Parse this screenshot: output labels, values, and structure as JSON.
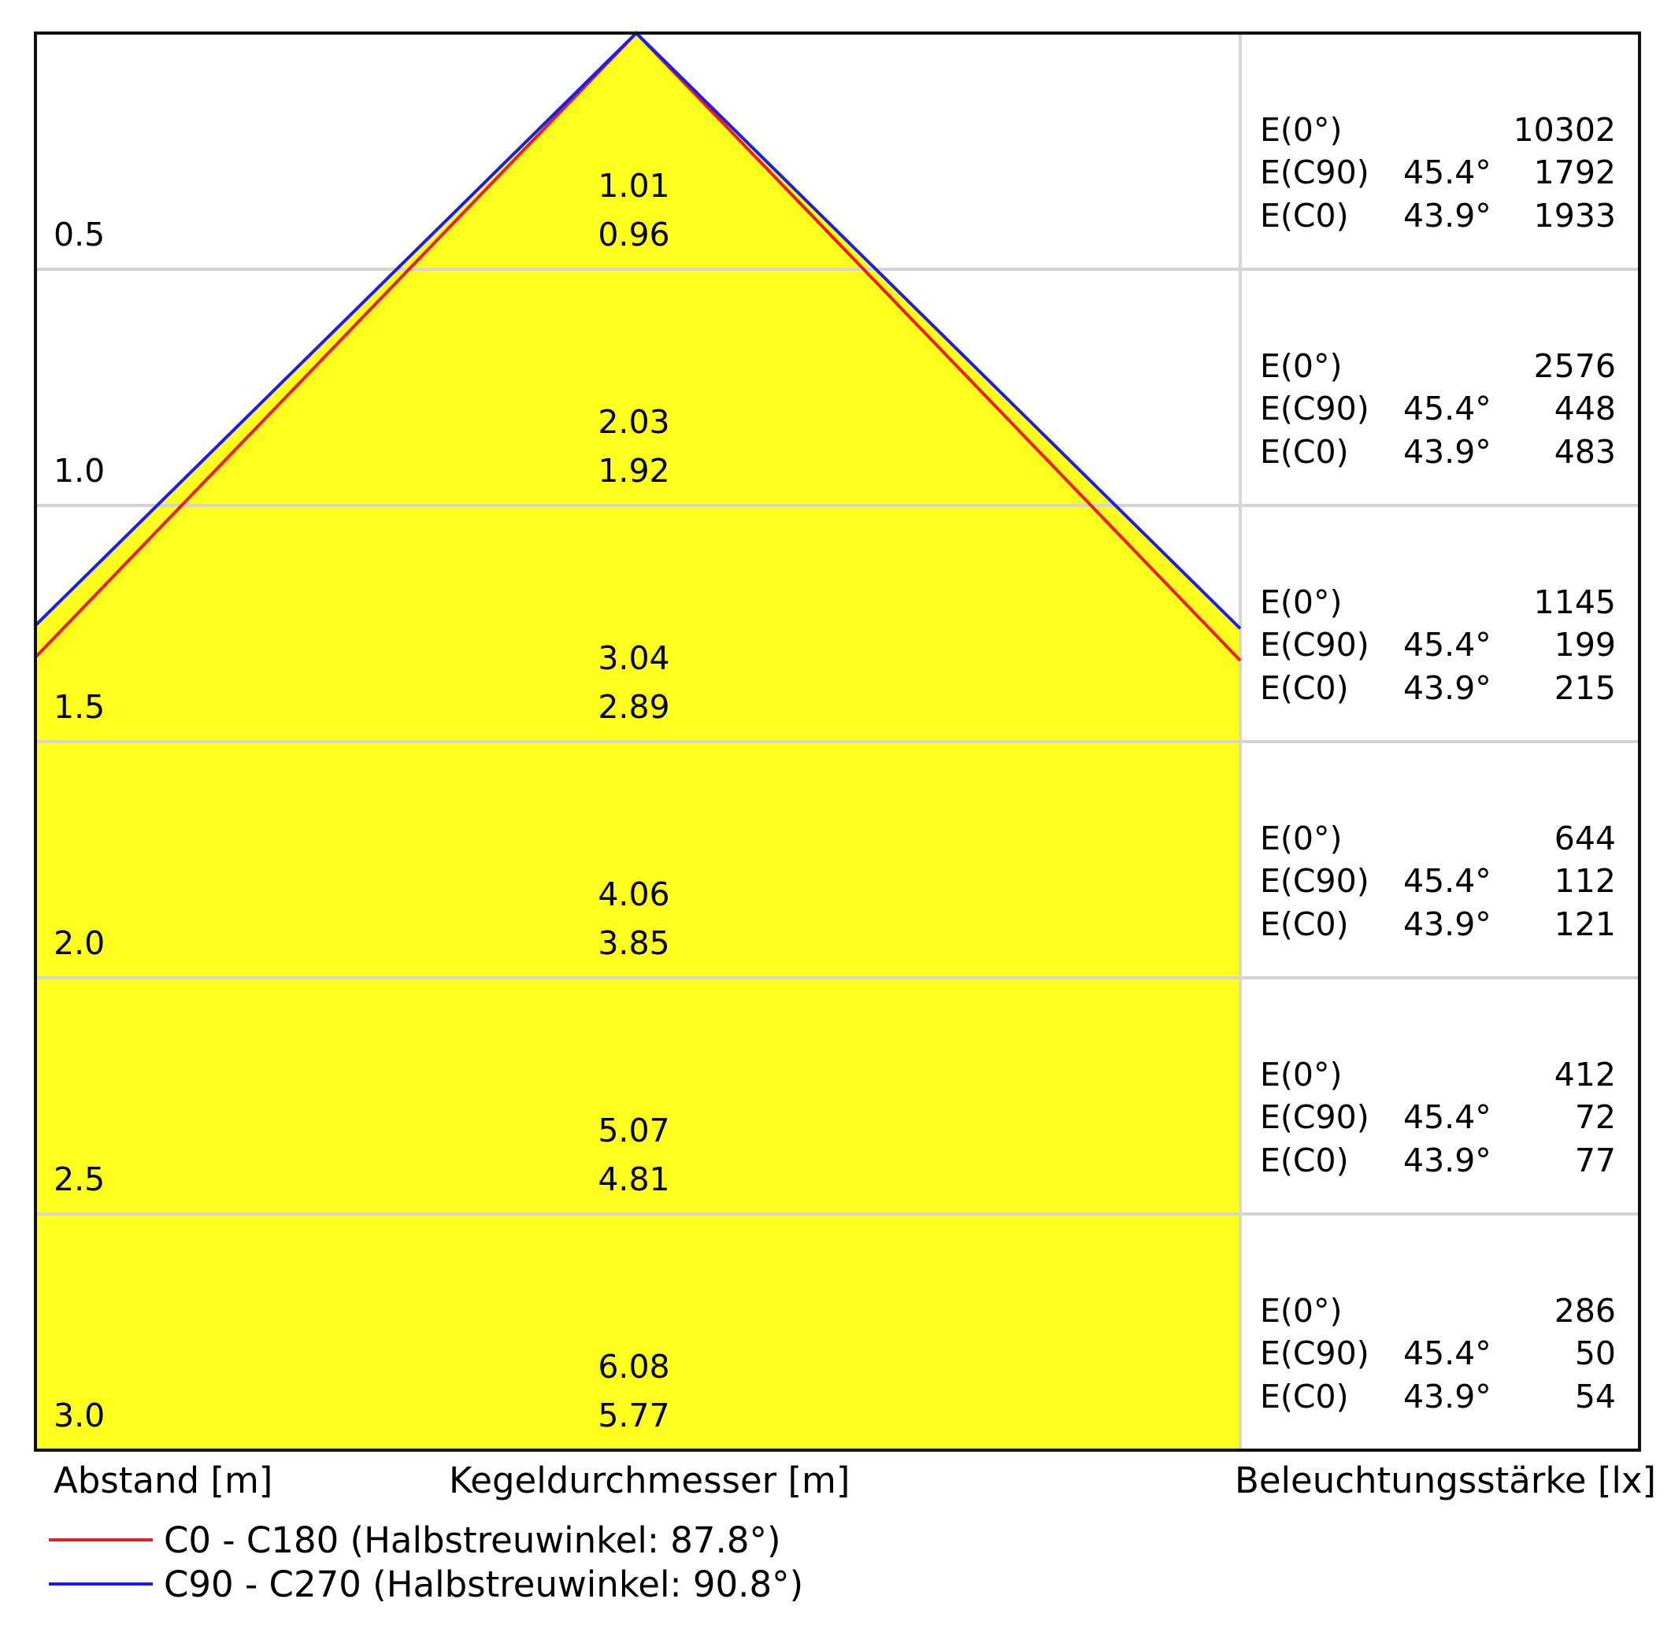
{
  "chart_data": {
    "type": "cone-diagram",
    "rows": [
      {
        "distance": "0.5",
        "dia_c90": "1.01",
        "dia_c0": "0.96",
        "e0": "10302",
        "ec90": "1792",
        "ec0": "1933"
      },
      {
        "distance": "1.0",
        "dia_c90": "2.03",
        "dia_c0": "1.92",
        "e0": "2576",
        "ec90": "448",
        "ec0": "483"
      },
      {
        "distance": "1.5",
        "dia_c90": "3.04",
        "dia_c0": "2.89",
        "e0": "1145",
        "ec90": "199",
        "ec0": "215"
      },
      {
        "distance": "2.0",
        "dia_c90": "4.06",
        "dia_c0": "3.85",
        "e0": "644",
        "ec90": "112",
        "ec0": "121"
      },
      {
        "distance": "2.5",
        "dia_c90": "5.07",
        "dia_c0": "4.81",
        "e0": "412",
        "ec90": "72",
        "ec0": "77"
      },
      {
        "distance": "3.0",
        "dia_c90": "6.08",
        "dia_c0": "5.77",
        "e0": "286",
        "ec90": "50",
        "ec0": "54"
      }
    ],
    "e_labels": {
      "e0": "E(0°)",
      "ec90": "E(C90)",
      "ec0": "E(C0)"
    },
    "half_angles": {
      "c90": "45.4°",
      "c0": "43.9°"
    },
    "spread_angles_deg": {
      "c0_c180": 87.8,
      "c90_c270": 90.8
    },
    "max_distance": 3.0,
    "fill_color": "#FFFF1E",
    "series": [
      {
        "name": "C0 - C180 (Halbstreuwinkel: 87.8°)",
        "color": "#EE1C1C"
      },
      {
        "name": "C90 - C270 (Halbstreuwinkel: 90.8°)",
        "color": "#1C1CEE"
      }
    ]
  },
  "axis_captions": {
    "distance": "Abstand [m]",
    "diameter": "Kegeldurchmesser [m]",
    "illuminance": "Beleuchtungsstärke [lx]"
  }
}
